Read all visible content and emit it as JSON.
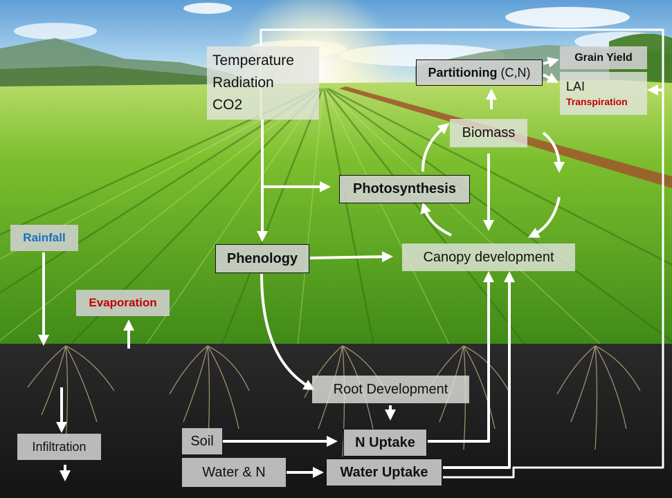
{
  "diagram": {
    "climate": {
      "temperature": "Temperature",
      "radiation": "Radiation",
      "co2": "CO2"
    },
    "photosynthesis": "Photosynthesis",
    "phenology": "Phenology",
    "canopy_development": "Canopy development",
    "biomass": "Biomass",
    "partitioning": {
      "label": "Partitioning",
      "suffix": " (C,N)"
    },
    "grain_yield": "Grain Yield",
    "lai": "LAI",
    "transpiration": "Transpiration",
    "rainfall": "Rainfall",
    "evaporation": "Evaporation",
    "infiltration": "Infiltration",
    "root_development": "Root Development",
    "soil": "Soil",
    "water_and_n": "Water & N",
    "n_uptake": "N Uptake",
    "water_uptake": "Water Uptake"
  },
  "colors": {
    "rainfall": "#1a6fbf",
    "evaporation": "#c00000",
    "transpiration": "#c00000",
    "arrow": "#ffffff",
    "soil": "#1b1b1b",
    "sky": "#8fc3e8",
    "crop": "#5aa21e"
  }
}
